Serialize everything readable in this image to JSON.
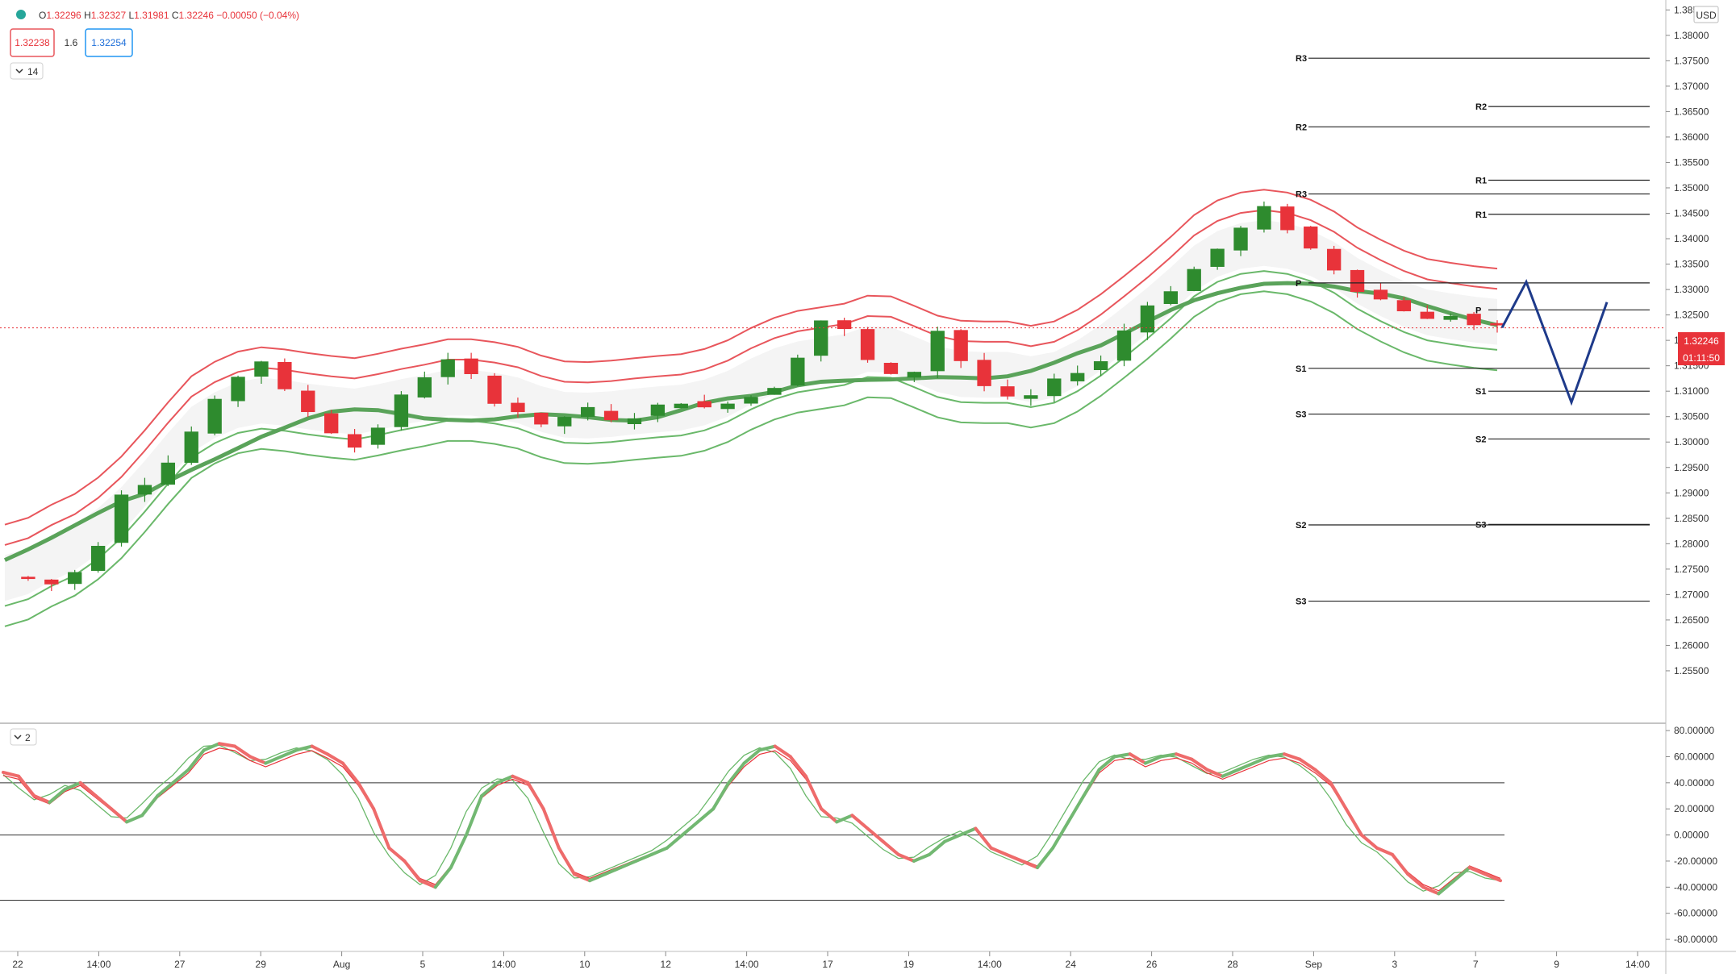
{
  "header": {
    "ohlc": [
      {
        "label": "O",
        "value": "1.32296"
      },
      {
        "label": "H",
        "value": "1.32327"
      },
      {
        "label": "L",
        "value": "1.31981"
      },
      {
        "label": "C",
        "value": "1.32246"
      }
    ],
    "change": "−0.00050 (−0.04%)",
    "sell_price": "1.32238",
    "spread": "1.6",
    "buy_price": "1.32254",
    "indicator_badge": "14",
    "oscillator_badge": "2",
    "currency": "USD"
  },
  "price_tag": {
    "price": "1.32246",
    "countdown": "01:11:50"
  },
  "colors": {
    "bull": "#2e8b2e",
    "bear": "#e8333a",
    "band_red": "#e8565c",
    "band_green": "#6ab86a",
    "projection": "#1e3a8a",
    "grid": "#000000"
  },
  "chart_data": [
    {
      "type": "candlestick",
      "y_axis": {
        "range": [
          1.245,
          1.386
        ],
        "ticks": [
          "1.38500",
          "1.38000",
          "1.37500",
          "1.37000",
          "1.36500",
          "1.36000",
          "1.35500",
          "1.35000",
          "1.34500",
          "1.34000",
          "1.33500",
          "1.33000",
          "1.32500",
          "1.32000",
          "1.31500",
          "1.31000",
          "1.30500",
          "1.30000",
          "1.29500",
          "1.29000",
          "1.28500",
          "1.28000",
          "1.27500",
          "1.27000",
          "1.26500",
          "1.26000",
          "1.25500"
        ]
      },
      "x_axis": {
        "ticks": [
          "22",
          "14:00",
          "27",
          "29",
          "Aug",
          "5",
          "14:00",
          "10",
          "12",
          "14:00",
          "17",
          "19",
          "14:00",
          "24",
          "26",
          "28",
          "Sep",
          "3",
          "7",
          "9",
          "14:00"
        ]
      },
      "series_trend": [
        1.2735,
        1.273,
        1.272,
        1.2745,
        1.28,
        1.29,
        1.292,
        1.296,
        1.302,
        1.308,
        1.313,
        1.316,
        1.31,
        1.306,
        1.302,
        1.299,
        1.303,
        1.309,
        1.313,
        1.316,
        1.313,
        1.308,
        1.306,
        1.303,
        1.305,
        1.3065,
        1.304,
        1.305,
        1.307,
        1.308,
        1.3065,
        1.308,
        1.309,
        1.311,
        1.317,
        1.324,
        1.322,
        1.316,
        1.313,
        1.314,
        1.322,
        1.316,
        1.311,
        1.3085,
        1.309,
        1.312,
        1.314,
        1.316,
        1.322,
        1.327,
        1.33,
        1.334,
        1.338,
        1.342,
        1.346,
        1.342,
        1.338,
        1.334,
        1.33,
        1.328,
        1.326,
        1.324,
        1.325,
        1.323,
        1.3225
      ],
      "pivot_levels": [
        {
          "label": "R3",
          "value": 1.3755
        },
        {
          "label": "R2",
          "value": 1.366
        },
        {
          "label": "R2",
          "value": 1.362
        },
        {
          "label": "R1",
          "value": 1.3515
        },
        {
          "label": "R3",
          "value": 1.3488
        },
        {
          "label": "R1",
          "value": 1.3448
        },
        {
          "label": "P",
          "value": 1.3313
        },
        {
          "label": "P",
          "value": 1.326
        },
        {
          "label": "S1",
          "value": 1.3145
        },
        {
          "label": "S1",
          "value": 1.31
        },
        {
          "label": "S3",
          "value": 1.3055
        },
        {
          "label": "S2",
          "value": 1.3006
        },
        {
          "label": "S2",
          "value": 1.2837
        },
        {
          "label": "S3",
          "value": 1.2838
        },
        {
          "label": "S3",
          "value": 1.2687
        }
      ],
      "projection": [
        1.3225,
        1.3315,
        1.3078,
        1.3275
      ]
    },
    {
      "type": "line",
      "y_axis": {
        "range": [
          -88,
          85
        ],
        "ticks": [
          "80.00000",
          "60.00000",
          "40.00000",
          "20.00000",
          "0.00000",
          "-20.00000",
          "-40.00000",
          "-60.00000",
          "-80.00000"
        ],
        "reference_lines": [
          40,
          0,
          -50
        ]
      },
      "series_oscillator": [
        48,
        45,
        30,
        25,
        35,
        40,
        30,
        20,
        10,
        15,
        30,
        40,
        50,
        65,
        70,
        68,
        60,
        55,
        60,
        65,
        68,
        62,
        55,
        40,
        20,
        -10,
        -20,
        -35,
        -40,
        -25,
        0,
        30,
        40,
        45,
        40,
        20,
        -10,
        -30,
        -35,
        -30,
        -25,
        -20,
        -15,
        -10,
        0,
        10,
        20,
        40,
        55,
        65,
        68,
        60,
        45,
        20,
        10,
        15,
        5,
        -5,
        -15,
        -20,
        -15,
        -5,
        0,
        5,
        -10,
        -15,
        -20,
        -25,
        -10,
        10,
        30,
        50,
        60,
        62,
        55,
        60,
        62,
        58,
        50,
        45,
        50,
        55,
        60,
        62,
        58,
        50,
        40,
        20,
        0,
        -10,
        -15,
        -30,
        -40,
        -45,
        -35,
        -25,
        -30,
        -35
      ]
    }
  ]
}
